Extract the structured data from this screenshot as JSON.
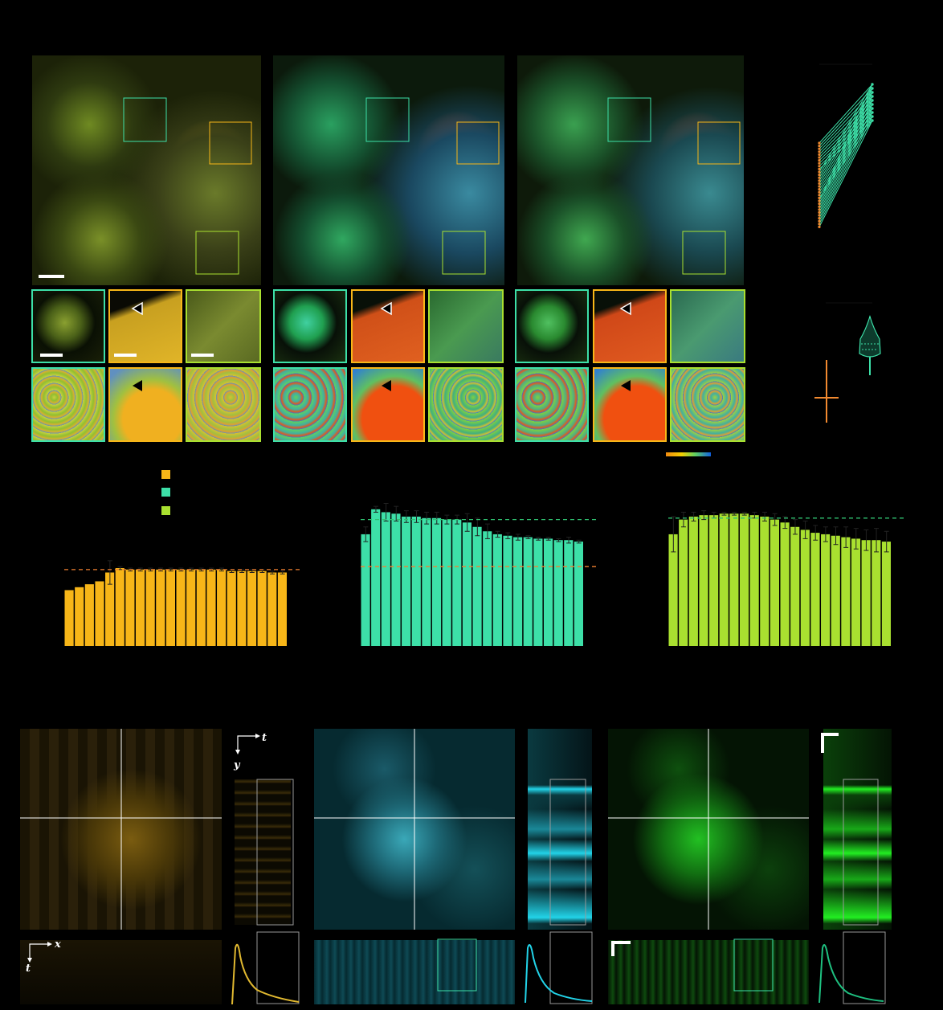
{
  "figure": {
    "axis_labels": {
      "t_top": "t",
      "y_top": "y",
      "x_bottom": "x",
      "t_bottom": "t"
    },
    "legend": {
      "swatches": [
        {
          "color": "#f7b618"
        },
        {
          "color": "#3de0a8"
        },
        {
          "color": "#a9e030"
        }
      ]
    },
    "colormap": {
      "stops": [
        "#f28a10",
        "#f5d000",
        "#60d060",
        "#1060e0"
      ]
    },
    "colors": {
      "orange": "#f7b618",
      "teal": "#3de0a8",
      "lime": "#a9e030",
      "cyan": "#22d3e8",
      "green": "#22ee22",
      "gold": "#e0b830"
    }
  },
  "chart_data": [
    {
      "type": "bar",
      "color": "#f7b618",
      "values": [
        0.38,
        0.4,
        0.42,
        0.44,
        0.5,
        0.53,
        0.52,
        0.52,
        0.52,
        0.52,
        0.52,
        0.52,
        0.52,
        0.52,
        0.52,
        0.52,
        0.51,
        0.51,
        0.51,
        0.51,
        0.5,
        0.5
      ],
      "errors": [
        0.0,
        0.0,
        0.0,
        0.0,
        0.08,
        0.01,
        0.01,
        0.01,
        0.01,
        0.01,
        0.01,
        0.01,
        0.01,
        0.01,
        0.01,
        0.01,
        0.01,
        0.01,
        0.01,
        0.01,
        0.01,
        0.01
      ],
      "reference_lines": [
        {
          "value": 0.52,
          "color": "#f08030"
        }
      ],
      "ylim": [
        0,
        1
      ]
    },
    {
      "type": "bar",
      "color": "#3de0a8",
      "values": [
        0.76,
        0.93,
        0.91,
        0.9,
        0.88,
        0.88,
        0.87,
        0.87,
        0.86,
        0.86,
        0.84,
        0.81,
        0.78,
        0.76,
        0.75,
        0.74,
        0.74,
        0.73,
        0.73,
        0.72,
        0.72,
        0.71
      ],
      "errors": [
        0.05,
        0.02,
        0.06,
        0.05,
        0.04,
        0.04,
        0.04,
        0.04,
        0.03,
        0.03,
        0.06,
        0.06,
        0.05,
        0.02,
        0.02,
        0.02,
        0.01,
        0.01,
        0.01,
        0.01,
        0.02,
        0.01
      ],
      "reference_lines": [
        {
          "value": 0.86,
          "color": "#30c070"
        },
        {
          "value": 0.54,
          "color": "#f08030"
        }
      ],
      "ylim": [
        0,
        1
      ]
    },
    {
      "type": "bar",
      "color": "#a9e030",
      "values": [
        0.76,
        0.86,
        0.88,
        0.89,
        0.89,
        0.9,
        0.9,
        0.9,
        0.89,
        0.88,
        0.86,
        0.84,
        0.81,
        0.79,
        0.77,
        0.76,
        0.75,
        0.74,
        0.73,
        0.72,
        0.72,
        0.71
      ],
      "errors": [
        0.12,
        0.05,
        0.03,
        0.03,
        0.02,
        0.01,
        0.01,
        0.01,
        0.02,
        0.03,
        0.04,
        0.04,
        0.05,
        0.06,
        0.05,
        0.05,
        0.06,
        0.07,
        0.07,
        0.07,
        0.08,
        0.07
      ],
      "reference_lines": [
        {
          "value": 0.87,
          "color": "#30c070"
        }
      ],
      "ylim": [
        0,
        1
      ]
    }
  ]
}
